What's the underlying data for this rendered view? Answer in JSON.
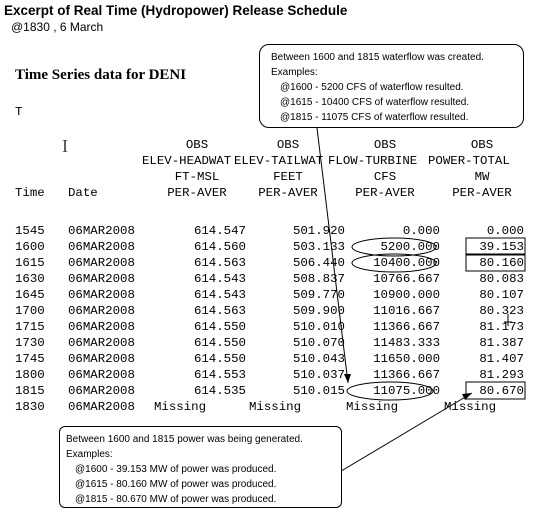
{
  "page": {
    "title": "Excerpt of Real Time (Hydropower) Release Schedule",
    "subtitle": "@1830 , 6 March"
  },
  "report": {
    "heading": "Time Series data for DENI",
    "t_label": "T",
    "columns": [
      {
        "line1": "",
        "line2": "",
        "line3": "",
        "line4": "Time"
      },
      {
        "line1": "",
        "line2": "",
        "line3": "",
        "line4": "Date"
      },
      {
        "line1": "OBS",
        "line2": "ELEV-HEADWAT",
        "line3": "FT-MSL",
        "line4": "PER-AVER"
      },
      {
        "line1": "OBS",
        "line2": "ELEV-TAILWAT",
        "line3": "FEET",
        "line4": "PER-AVER"
      },
      {
        "line1": "OBS",
        "line2": "FLOW-TURBINE",
        "line3": "CFS",
        "line4": "PER-AVER"
      },
      {
        "line1": "OBS",
        "line2": "POWER-TOTAL",
        "line3": "MW",
        "line4": "PER-AVER"
      }
    ],
    "rows": [
      {
        "time": "1545",
        "date": "06MAR2008",
        "elev_headwater": "614.547",
        "elev_tailwater": "501.920",
        "flow_turbine": "0.000",
        "power_total": "0.000"
      },
      {
        "time": "1600",
        "date": "06MAR2008",
        "elev_headwater": "614.560",
        "elev_tailwater": "503.133",
        "flow_turbine": "5200.000",
        "power_total": "39.153"
      },
      {
        "time": "1615",
        "date": "06MAR2008",
        "elev_headwater": "614.563",
        "elev_tailwater": "506.440",
        "flow_turbine": "10400.000",
        "power_total": "80.160"
      },
      {
        "time": "1630",
        "date": "06MAR2008",
        "elev_headwater": "614.543",
        "elev_tailwater": "508.837",
        "flow_turbine": "10766.667",
        "power_total": "80.083"
      },
      {
        "time": "1645",
        "date": "06MAR2008",
        "elev_headwater": "614.543",
        "elev_tailwater": "509.770",
        "flow_turbine": "10900.000",
        "power_total": "80.107"
      },
      {
        "time": "1700",
        "date": "06MAR2008",
        "elev_headwater": "614.563",
        "elev_tailwater": "509.900",
        "flow_turbine": "11016.667",
        "power_total": "80.323"
      },
      {
        "time": "1715",
        "date": "06MAR2008",
        "elev_headwater": "614.550",
        "elev_tailwater": "510.010",
        "flow_turbine": "11366.667",
        "power_total": "81.173"
      },
      {
        "time": "1730",
        "date": "06MAR2008",
        "elev_headwater": "614.550",
        "elev_tailwater": "510.070",
        "flow_turbine": "11483.333",
        "power_total": "81.387"
      },
      {
        "time": "1745",
        "date": "06MAR2008",
        "elev_headwater": "614.550",
        "elev_tailwater": "510.043",
        "flow_turbine": "11650.000",
        "power_total": "81.407"
      },
      {
        "time": "1800",
        "date": "06MAR2008",
        "elev_headwater": "614.553",
        "elev_tailwater": "510.037",
        "flow_turbine": "11366.667",
        "power_total": "81.293"
      },
      {
        "time": "1815",
        "date": "06MAR2008",
        "elev_headwater": "614.535",
        "elev_tailwater": "510.015",
        "flow_turbine": "11075.000",
        "power_total": "80.670"
      },
      {
        "time": "1830",
        "date": "06MAR2008",
        "elev_headwater": "Missing",
        "elev_tailwater": "Missing",
        "flow_turbine": "Missing",
        "power_total": "Missing"
      }
    ]
  },
  "callouts": {
    "waterflow": {
      "line1": "Between 1600 and 1815 waterflow was created.",
      "line2": "Examples:",
      "line3": "@1600 -   5200 CFS of waterflow resulted.",
      "line4": "@1615 - 10400 CFS of waterflow resulted.",
      "line5": "@1815 - 11075 CFS of waterflow resulted."
    },
    "power": {
      "line1": "Between 1600 and 1815 power was being generated.",
      "line2": "Examples:",
      "line3": "@1600 -  39.153 MW of power was produced.",
      "line4": "@1615 - 80.160 MW of power was produced.",
      "line5": "@1815 - 80.670 MW of power was produced."
    }
  }
}
